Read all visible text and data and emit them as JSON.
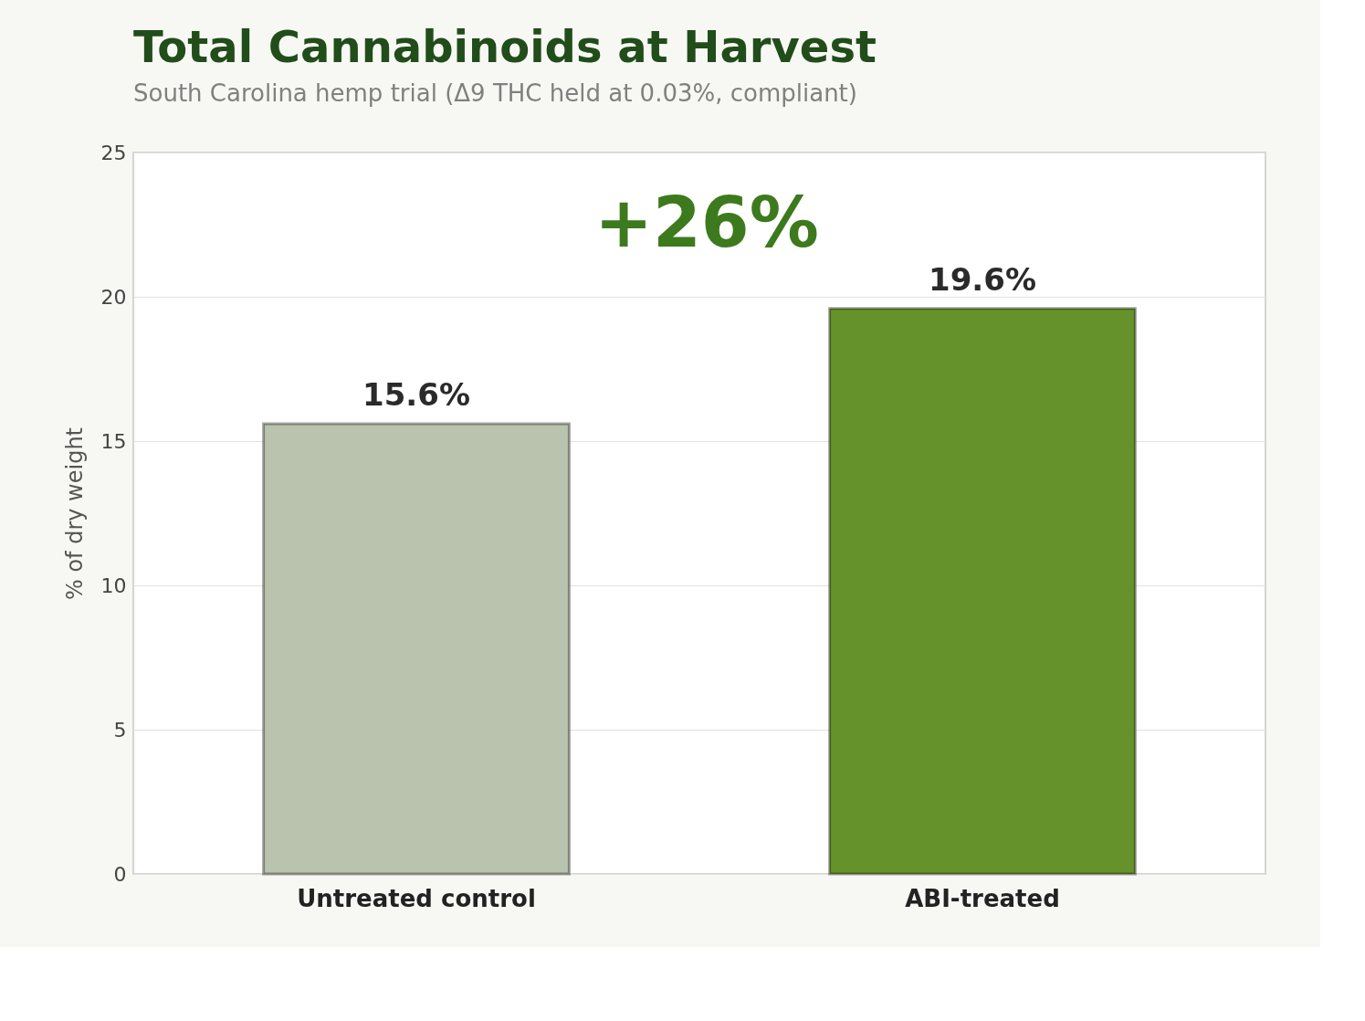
{
  "chart_data": {
    "type": "bar",
    "title": "Total Cannabinoids at Harvest",
    "subtitle": "South Carolina hemp trial (Δ9 THC held at 0.03%, compliant)",
    "ylabel": "% of dry weight",
    "categories": [
      "Untreated control",
      "ABI-treated"
    ],
    "values": [
      15.6,
      19.6
    ],
    "colors": [
      "#b9c3ad",
      "#65922a"
    ],
    "value_labels": [
      "15.6%",
      "19.6%"
    ],
    "annotations": [
      "+26%"
    ],
    "ylim": [
      0,
      25
    ],
    "yticks": [
      0,
      5,
      10,
      15,
      20,
      25
    ],
    "grid": "y"
  }
}
